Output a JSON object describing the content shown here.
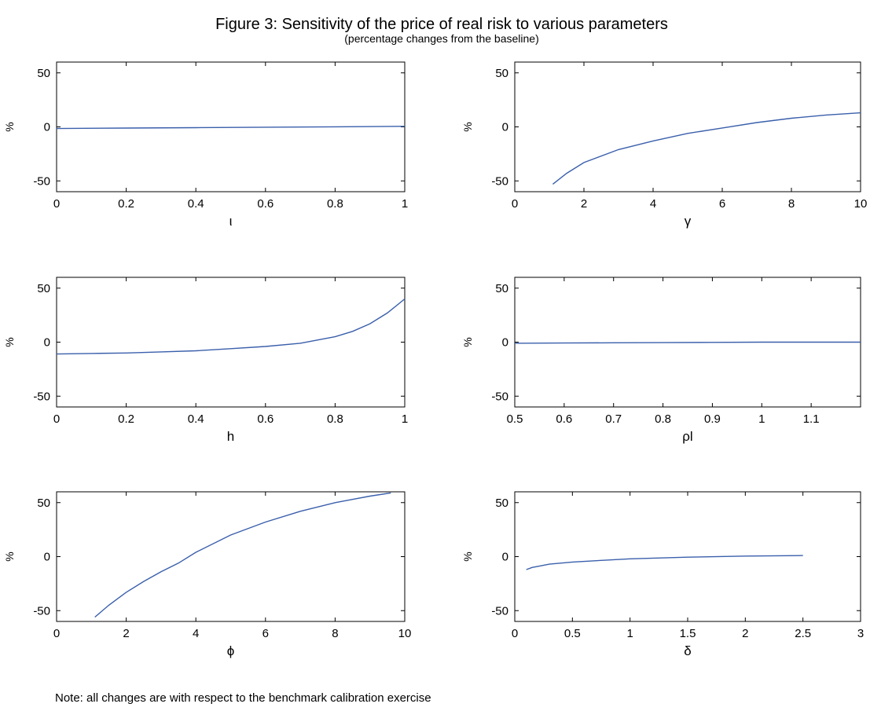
{
  "figure": {
    "title": "Figure 3: Sensitivity of the price of real risk to various parameters",
    "subtitle": "(percentage changes from the baseline)",
    "note": "Note: all changes are with respect to the benchmark calibration exercise",
    "line_color": "#3a5fab"
  },
  "chart_data": [
    {
      "type": "line",
      "xlabel": "ι",
      "ylabel": "%",
      "xlim": [
        0,
        1
      ],
      "ylim": [
        -60,
        60
      ],
      "xticks": [
        0,
        0.2,
        0.4,
        0.6,
        0.8,
        1
      ],
      "xtick_labels": [
        "0",
        "0.2",
        "0.4",
        "0.6",
        "0.8",
        "1"
      ],
      "yticks": [
        -50,
        0,
        50
      ],
      "ytick_labels": [
        "-50",
        "0",
        "50"
      ],
      "series": [
        {
          "x": [
            0,
            0.2,
            0.4,
            0.6,
            0.8,
            1
          ],
          "y": [
            -1.5,
            -1.1,
            -0.7,
            -0.3,
            0.1,
            0.5
          ]
        }
      ]
    },
    {
      "type": "line",
      "xlabel": "γ",
      "ylabel": "%",
      "xlim": [
        0,
        10
      ],
      "ylim": [
        -60,
        60
      ],
      "xticks": [
        0,
        2,
        4,
        6,
        8,
        10
      ],
      "xtick_labels": [
        "0",
        "2",
        "4",
        "6",
        "8",
        "10"
      ],
      "yticks": [
        -50,
        0,
        50
      ],
      "ytick_labels": [
        "-50",
        "0",
        "50"
      ],
      "series": [
        {
          "x": [
            1.1,
            1.5,
            2,
            3,
            4,
            5,
            6,
            7,
            8,
            9,
            10
          ],
          "y": [
            -53,
            -43,
            -33,
            -21,
            -13,
            -6,
            -1,
            4,
            8,
            11,
            13
          ]
        }
      ]
    },
    {
      "type": "line",
      "xlabel": "h",
      "ylabel": "%",
      "xlim": [
        0,
        1
      ],
      "ylim": [
        -60,
        60
      ],
      "xticks": [
        0,
        0.2,
        0.4,
        0.6,
        0.8,
        1
      ],
      "xtick_labels": [
        "0",
        "0.2",
        "0.4",
        "0.6",
        "0.8",
        "1"
      ],
      "yticks": [
        -50,
        0,
        50
      ],
      "ytick_labels": [
        "-50",
        "0",
        "50"
      ],
      "series": [
        {
          "x": [
            0,
            0.1,
            0.2,
            0.3,
            0.4,
            0.5,
            0.6,
            0.7,
            0.8,
            0.85,
            0.9,
            0.95,
            1
          ],
          "y": [
            -11,
            -10.5,
            -10,
            -9,
            -8,
            -6,
            -4,
            -1,
            5,
            10,
            17,
            27,
            40
          ]
        }
      ]
    },
    {
      "type": "line",
      "xlabel": "ρl",
      "ylabel": "%",
      "xlim": [
        0.5,
        1.2
      ],
      "ylim": [
        -60,
        60
      ],
      "xticks": [
        0.5,
        0.6,
        0.7,
        0.8,
        0.9,
        1,
        1.1
      ],
      "xtick_labels": [
        "0.5",
        "0.6",
        "0.7",
        "0.8",
        "0.9",
        "1",
        "1.1"
      ],
      "yticks": [
        -50,
        0,
        50
      ],
      "ytick_labels": [
        "-50",
        "0",
        "50"
      ],
      "series": [
        {
          "x": [
            0.5,
            0.6,
            0.7,
            0.8,
            0.9,
            1,
            1.1,
            1.2
          ],
          "y": [
            -1,
            -0.8,
            -0.6,
            -0.4,
            -0.2,
            0,
            0,
            0
          ]
        }
      ]
    },
    {
      "type": "line",
      "xlabel": "ϕ",
      "ylabel": "%",
      "xlim": [
        0,
        10
      ],
      "ylim": [
        -60,
        60
      ],
      "xticks": [
        0,
        2,
        4,
        6,
        8,
        10
      ],
      "xtick_labels": [
        "0",
        "2",
        "4",
        "6",
        "8",
        "10"
      ],
      "yticks": [
        -50,
        0,
        50
      ],
      "ytick_labels": [
        "-50",
        "0",
        "50"
      ],
      "series": [
        {
          "x": [
            1.1,
            1.5,
            2,
            2.5,
            3,
            3.5,
            4,
            5,
            6,
            7,
            8,
            9,
            9.6
          ],
          "y": [
            -56,
            -45,
            -33,
            -23,
            -14,
            -6,
            4,
            20,
            32,
            42,
            50,
            56,
            59
          ]
        }
      ]
    },
    {
      "type": "line",
      "xlabel": "δ",
      "ylabel": "%",
      "xlim": [
        0,
        3
      ],
      "ylim": [
        -60,
        60
      ],
      "xticks": [
        0,
        0.5,
        1,
        1.5,
        2,
        2.5,
        3
      ],
      "xtick_labels": [
        "0",
        "0.5",
        "1",
        "1.5",
        "2",
        "2.5",
        "3"
      ],
      "yticks": [
        -50,
        0,
        50
      ],
      "ytick_labels": [
        "-50",
        "0",
        "50"
      ],
      "series": [
        {
          "x": [
            0.1,
            0.15,
            0.2,
            0.3,
            0.5,
            0.75,
            1,
            1.5,
            2,
            2.5
          ],
          "y": [
            -12,
            -10,
            -9,
            -7,
            -5,
            -3.5,
            -2,
            -0.5,
            0.5,
            1
          ]
        }
      ]
    }
  ]
}
